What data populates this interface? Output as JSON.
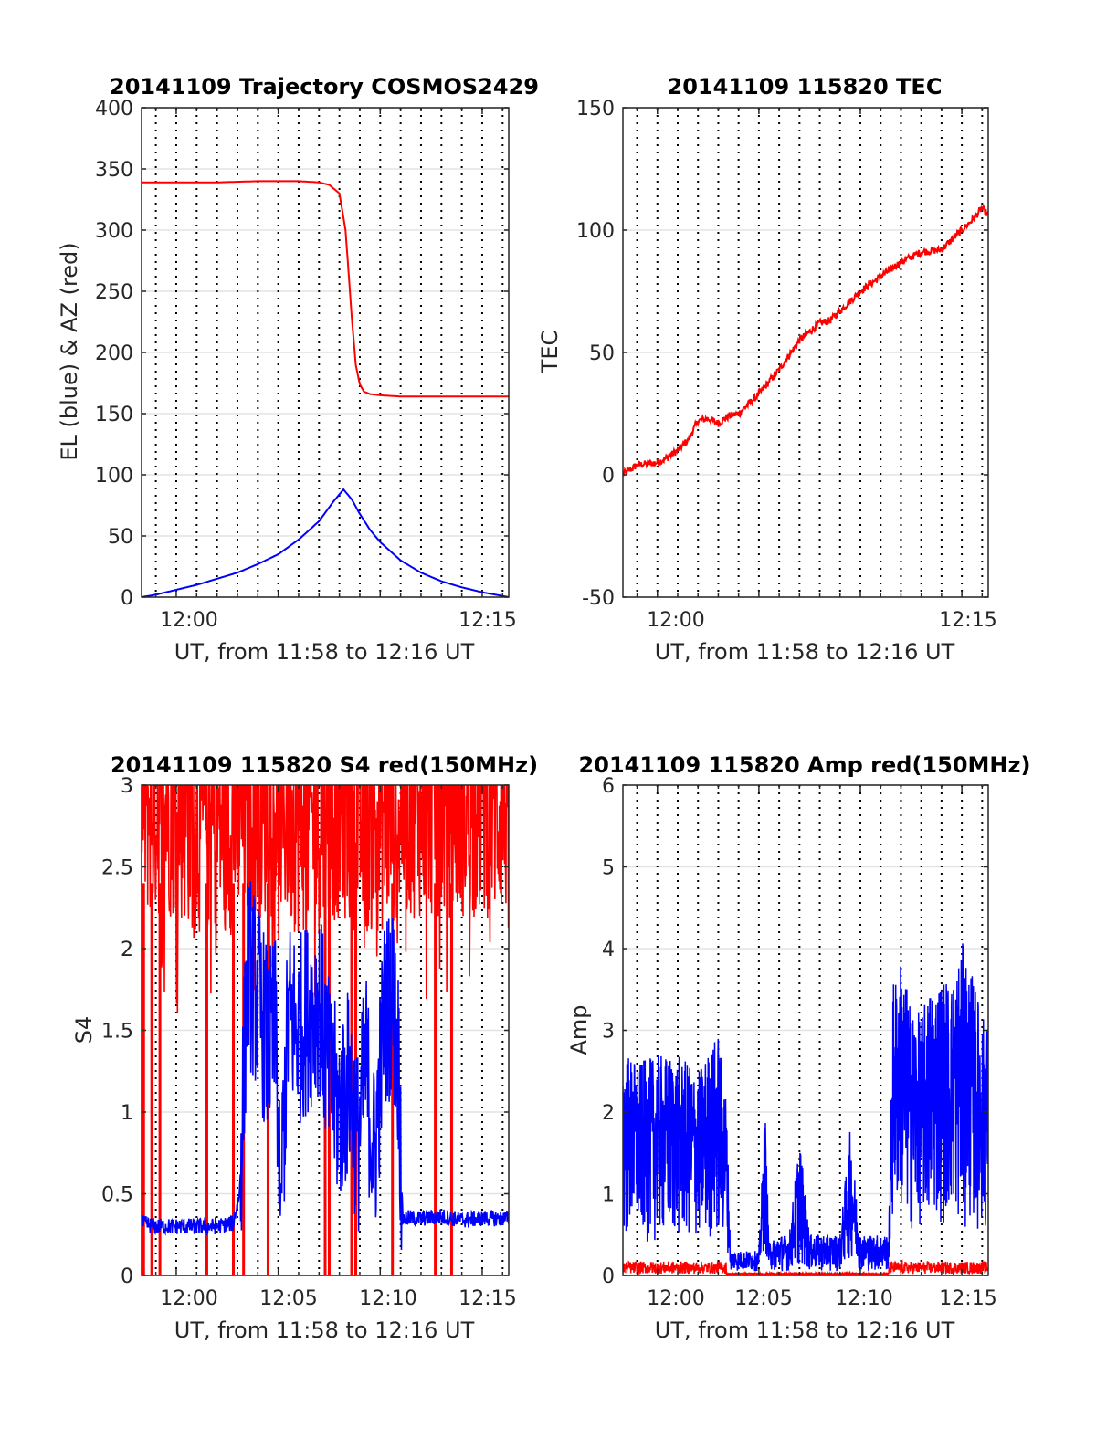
{
  "chart_data": [
    {
      "type": "line",
      "title": "20141109 Trajectory COSMOS2429",
      "xlabel": "UT, from 11:58 to 12:16 UT",
      "ylabel": "EL (blue) & AZ (red)",
      "xlim": [
        "11:58",
        "12:16"
      ],
      "ylim": [
        0,
        400
      ],
      "xticks": [
        "12:00",
        "12:15"
      ],
      "yticks": [
        0,
        50,
        100,
        150,
        200,
        250,
        300,
        350,
        400
      ],
      "grid": "horizontal major + dotted vertical minute lines",
      "colors": {
        "az": "#ff0000",
        "el": "#0000ff"
      },
      "series": [
        {
          "color": "#ff0000",
          "x_min": [
            -1.7,
            0,
            2,
            4,
            6,
            7,
            7.5,
            8,
            8.3,
            8.6,
            8.8,
            9.0,
            9.2,
            9.5,
            10,
            11,
            12,
            14,
            16.3
          ],
          "values": [
            339,
            339,
            339,
            340,
            340,
            339,
            337,
            330,
            300,
            230,
            190,
            174,
            168,
            166,
            165,
            164,
            164,
            164,
            164
          ]
        },
        {
          "color": "#0000ff",
          "x_min": [
            -1.7,
            -1,
            0,
            1,
            2,
            3,
            4,
            5,
            6,
            7,
            7.7,
            8.2,
            8.6,
            9,
            9.5,
            10,
            11,
            12,
            13,
            14,
            15,
            16.3
          ],
          "values": [
            0,
            2,
            6,
            10,
            15,
            20,
            27,
            35,
            47,
            62,
            78,
            88,
            80,
            68,
            55,
            45,
            30,
            20,
            13,
            8,
            4,
            0
          ]
        }
      ]
    },
    {
      "type": "line",
      "title": "20141109 115820 TEC",
      "xlabel": "UT, from 11:58 to 12:16 UT",
      "ylabel": "TEC",
      "xlim": [
        "11:58",
        "12:16"
      ],
      "ylim": [
        -50,
        150
      ],
      "xticks": [
        "12:00",
        "12:15"
      ],
      "yticks": [
        -50,
        0,
        50,
        100,
        150
      ],
      "grid": "horizontal major + dotted vertical minute lines",
      "series": [
        {
          "color": "#ff0000",
          "x_min": [
            -1.7,
            -1,
            0,
            0.5,
            1,
            1.5,
            2,
            2.5,
            3,
            3.5,
            4,
            5,
            6,
            7,
            8,
            8.5,
            9,
            10,
            11,
            12,
            13,
            14,
            14.5,
            15,
            15.5,
            16,
            16.3
          ],
          "values": [
            0,
            4,
            5,
            7,
            10,
            14,
            22,
            23,
            21,
            24,
            25,
            33,
            43,
            55,
            62,
            63,
            67,
            75,
            81,
            87,
            91,
            92,
            96,
            100,
            104,
            109,
            106
          ]
        }
      ]
    },
    {
      "type": "line",
      "title": "20141109 115820 S4 red(150MHz)",
      "xlabel": "UT, from 11:58 to 12:16 UT",
      "ylabel": "S4",
      "xlim": [
        "11:58",
        "12:16"
      ],
      "ylim": [
        0,
        3
      ],
      "xticks": [
        "12:00",
        "12:05",
        "12:10",
        "12:15"
      ],
      "yticks": [
        0,
        0.5,
        1,
        1.5,
        2,
        2.5,
        3
      ],
      "grid": "horizontal major + dotted vertical minute lines",
      "series": [
        {
          "color": "#ff0000",
          "description": "noisy, mostly between 2 and 3 with spikes to 0",
          "x_min": [
            -1.7,
            -1,
            0,
            1,
            2,
            3,
            4,
            5,
            6,
            7,
            8,
            9,
            10,
            11,
            12,
            13,
            14,
            15,
            16.3
          ],
          "values": [
            2.6,
            2.6,
            2.6,
            2.5,
            2.5,
            2.5,
            2.6,
            2.6,
            2.5,
            2.5,
            2.6,
            2.5,
            2.5,
            2.6,
            2.6,
            2.6,
            2.6,
            2.6,
            2.6
          ],
          "drops_to_zero_at_min": [
            -1.6,
            -1.2,
            -0.8,
            1.5,
            2.8,
            3.3,
            4.5,
            7.3,
            7.5,
            8.6,
            8.8,
            10.6,
            12.7,
            13.5
          ]
        },
        {
          "color": "#0000ff",
          "x_min": [
            -1.7,
            -1,
            0,
            1,
            2,
            2.8,
            3.1,
            3.5,
            4,
            4.5,
            4.9,
            5.1,
            5.5,
            6,
            6.5,
            7,
            7.5,
            8,
            8.5,
            8.9,
            9.3,
            9.7,
            10.2,
            10.6,
            10.9,
            11.1,
            11.5,
            12,
            13,
            14,
            15,
            16.3
          ],
          "values": [
            0.32,
            0.3,
            0.3,
            0.3,
            0.3,
            0.32,
            0.5,
            1.9,
            1.7,
            1.4,
            1.5,
            0.4,
            1.6,
            1.5,
            1.6,
            1.7,
            1.2,
            1.0,
            1.2,
            0.8,
            1.3,
            0.7,
            1.6,
            1.7,
            1.3,
            0.35,
            0.35,
            0.35,
            0.36,
            0.34,
            0.35,
            0.35
          ]
        }
      ]
    },
    {
      "type": "line",
      "title": "20141109 115820 Amp red(150MHz)",
      "xlabel": "UT, from 11:58 to 12:16 UT",
      "ylabel": "Amp",
      "xlim": [
        "11:58",
        "12:16"
      ],
      "ylim": [
        0,
        6
      ],
      "xticks": [
        "12:00",
        "12:05",
        "12:10",
        "12:15"
      ],
      "yticks": [
        0,
        1,
        2,
        3,
        4,
        5,
        6
      ],
      "grid": "horizontal major + dotted vertical minute lines",
      "series": [
        {
          "color": "#ff0000",
          "description": "near zero, about 0.05 to 0.15 in segments with signal",
          "x_min": [
            -1.7,
            3.4,
            11.4,
            16.3
          ],
          "values": [
            0.1,
            0.1,
            0.1,
            0.1
          ]
        },
        {
          "color": "#0000ff",
          "description": "envelope lower/upper bounds",
          "x_min": [
            -1.7,
            -1,
            0,
            1,
            2,
            3,
            3.4,
            3.6,
            4,
            4.5,
            5,
            5.3,
            5.5,
            6,
            6.5,
            7,
            7.5,
            8,
            8.5,
            9,
            9.5,
            10,
            10.5,
            11,
            11.4,
            11.6,
            12,
            12.5,
            13,
            13.5,
            14,
            14.5,
            15,
            15.5,
            16,
            16.3
          ],
          "upper": [
            2.8,
            2.6,
            2.7,
            2.7,
            2.5,
            3.0,
            2.2,
            0.3,
            0.3,
            0.3,
            0.3,
            2.1,
            0.4,
            0.5,
            0.5,
            1.7,
            0.5,
            0.5,
            0.5,
            0.5,
            1.8,
            0.5,
            0.5,
            0.5,
            0.5,
            3.6,
            3.9,
            3.3,
            3.2,
            3.6,
            3.7,
            3.6,
            4.1,
            3.7,
            3.2,
            3.1
          ],
          "lower": [
            0.4,
            0.4,
            0.4,
            0.4,
            0.4,
            0.4,
            0.4,
            0.05,
            0.05,
            0.05,
            0.05,
            0.3,
            0.05,
            0.05,
            0.05,
            0.1,
            0.05,
            0.05,
            0.05,
            0.05,
            0.2,
            0.05,
            0.05,
            0.05,
            0.05,
            0.6,
            0.7,
            0.5,
            0.6,
            0.6,
            0.6,
            0.7,
            0.5,
            0.6,
            0.5,
            0.5
          ]
        }
      ]
    }
  ]
}
